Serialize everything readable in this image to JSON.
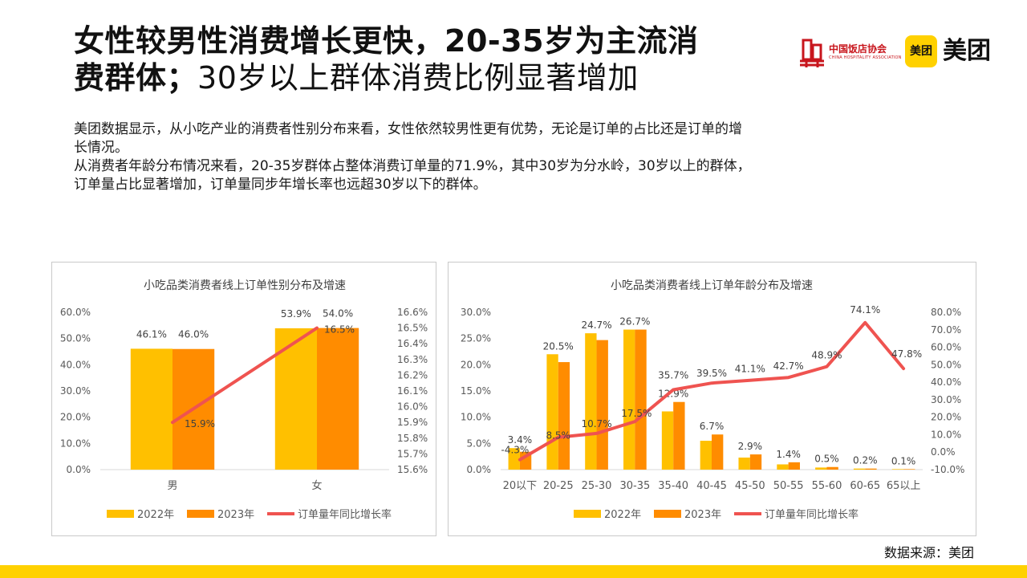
{
  "slide": {
    "title_line1": "女性较男性消费增长更快，20-35岁为主流消",
    "title_line2_bold": "费群体；",
    "title_line2_rest": "30岁以上群体消费比例显著增加",
    "desc_line1": "美团数据显示，从小吃产业的消费者性别分布来看，女性依然较男性更有优势，无论是订单的占比还是订单的增",
    "desc_line2": "长情况。",
    "desc_line3": "从消费者年龄分布情况来看，20-35岁群体占整体消费订单量的71.9%，其中30岁为分水岭，30岁以上的群体，",
    "desc_line4": "订单量占比显著增加，订单量同步年增长率也远超30岁以下的群体。",
    "source": "数据来源：美团"
  },
  "logos": {
    "hotel_cn": "中国饭店协会",
    "hotel_en": "CHINA HOSPITALITY ASSOCIATION",
    "meituan_box": "美团",
    "meituan_text": "美团"
  },
  "colors": {
    "bar2022": "#ffc000",
    "bar2023": "#ff8c00",
    "line": "#ef5350",
    "axis_text": "#595959",
    "accent": "#ffd100"
  },
  "chart_data": [
    {
      "type": "bar",
      "title": "小吃品类消费者线上订单性别分布及增速",
      "categories": [
        "男",
        "女"
      ],
      "series": [
        {
          "name": "2022年",
          "values": [
            46.1,
            53.9
          ],
          "labels": [
            "46.1%",
            "53.9%"
          ]
        },
        {
          "name": "2023年",
          "values": [
            46.0,
            54.0
          ],
          "labels": [
            "46.0%",
            "54.0%"
          ]
        }
      ],
      "line_series": {
        "name": "订单量年同比增长率",
        "values": [
          15.9,
          16.5
        ],
        "labels": [
          "15.9%",
          "16.5%"
        ]
      },
      "ylim": [
        0,
        60
      ],
      "y_ticks": [
        "0.0%",
        "10.0%",
        "20.0%",
        "30.0%",
        "40.0%",
        "50.0%",
        "60.0%"
      ],
      "y2lim": [
        15.6,
        16.6
      ],
      "y2_ticks": [
        "15.6%",
        "15.7%",
        "15.8%",
        "15.9%",
        "16.0%",
        "16.1%",
        "16.2%",
        "16.3%",
        "16.4%",
        "16.5%",
        "16.6%"
      ],
      "legend": [
        "2022年",
        "2023年",
        "订单量年同比增长率"
      ],
      "legend_position": "bottom"
    },
    {
      "type": "bar",
      "title": "小吃品类消费者线上订单年龄分布及增速",
      "categories": [
        "20以下",
        "20-25",
        "25-30",
        "30-35",
        "35-40",
        "40-45",
        "45-50",
        "50-55",
        "55-60",
        "60-65",
        "65以上"
      ],
      "series": [
        {
          "name": "2022年",
          "values": [
            4.1,
            22.0,
            26.0,
            26.7,
            11.1,
            5.5,
            2.3,
            1.0,
            0.4,
            0.2,
            0.1
          ]
        },
        {
          "name": "2023年",
          "values": [
            3.4,
            20.5,
            24.7,
            26.7,
            12.9,
            6.7,
            2.9,
            1.4,
            0.5,
            0.2,
            0.1
          ]
        }
      ],
      "bar_labels": [
        "3.4%",
        "20.5%",
        "24.7%",
        "26.7%",
        "12.9%",
        "6.7%",
        "2.9%",
        "1.4%",
        "0.5%",
        "0.2%",
        "0.1%"
      ],
      "line_series": {
        "name": "订单量年同比增长率",
        "values": [
          -4.3,
          8.5,
          10.7,
          17.5,
          35.7,
          39.5,
          41.1,
          42.7,
          48.9,
          74.1,
          47.8
        ],
        "labels": [
          "-4.3%",
          "8.5%",
          "10.7%",
          "17.5%",
          "35.7%",
          "39.5%",
          "41.1%",
          "42.7%",
          "48.9%",
          "74.1%",
          "47.8%"
        ]
      },
      "ylim": [
        0,
        30
      ],
      "y_ticks": [
        "0.0%",
        "5.0%",
        "10.0%",
        "15.0%",
        "20.0%",
        "25.0%",
        "30.0%"
      ],
      "y2lim": [
        -10,
        80
      ],
      "y2_ticks": [
        "-10.0%",
        "0.0%",
        "10.0%",
        "20.0%",
        "30.0%",
        "40.0%",
        "50.0%",
        "60.0%",
        "70.0%",
        "80.0%"
      ],
      "legend": [
        "2022年",
        "2023年",
        "订单量年同比增长率"
      ],
      "legend_position": "bottom"
    }
  ]
}
